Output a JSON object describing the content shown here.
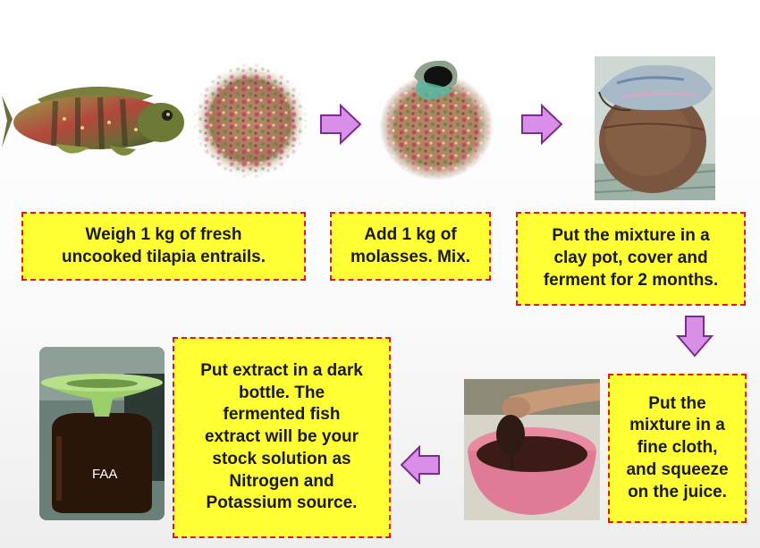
{
  "steps": {
    "weigh": "Weigh 1 kg of fresh\nuncooked tilapia entrails.",
    "add": "Add 1 kg of\nmolasses. Mix.",
    "ferment": "Put the mixture in a\nclay pot, cover and\nferment for 2 months.",
    "squeeze": "Put the\nmixture in a\nfine cloth,\nand squeeze\non the juice.",
    "extract": "Put extract in a dark\nbottle. The\nfermented  fish\nextract will be your\nstock solution as\nNitrogen and\nPotassium source."
  },
  "bottle_label": "FAA",
  "colors": {
    "box_fill": "#ffff33",
    "box_border": "#e0181d",
    "arrow_fill": "#d98ee8",
    "arrow_stroke": "#7d2b8e"
  }
}
